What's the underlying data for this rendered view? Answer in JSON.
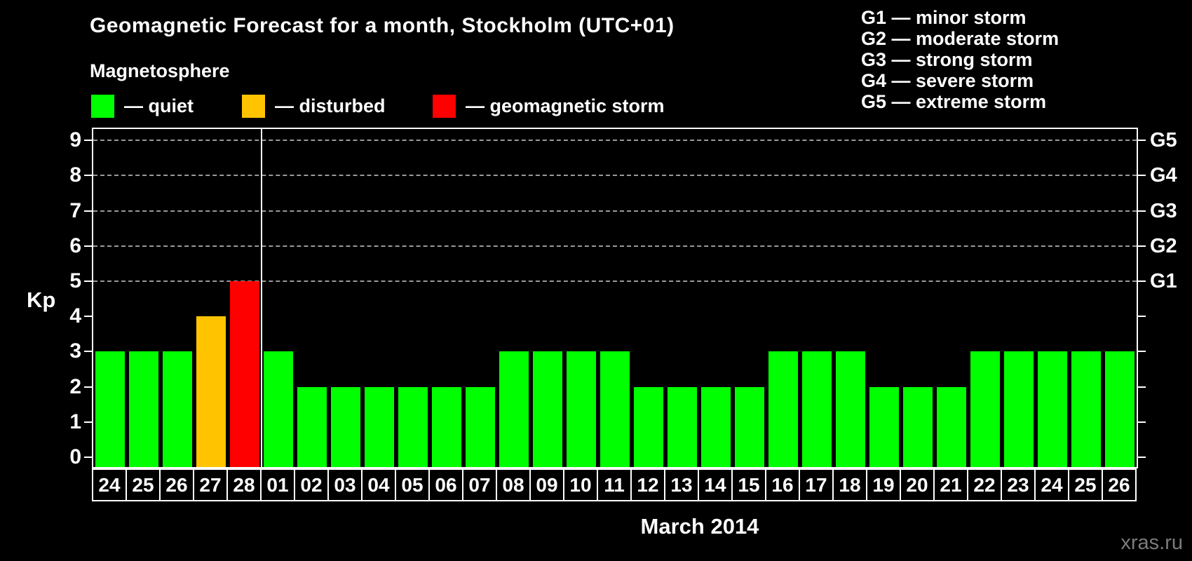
{
  "header": {
    "title": "Geomagnetic Forecast for a month, Stockholm (UTC+01)",
    "subtitle": "Magnetosphere"
  },
  "magnetosphere_legend": [
    {
      "status": "quiet",
      "label": "— quiet",
      "color": "#00FF00"
    },
    {
      "status": "disturbed",
      "label": "— disturbed",
      "color": "#FFC300"
    },
    {
      "status": "storm",
      "label": "— geomagnetic storm",
      "color": "#FF0000"
    }
  ],
  "g_scale_legend": [
    "G1 — minor storm",
    "G2 — moderate storm",
    "G3 — strong storm",
    "G4 — severe storm",
    "G5 — extreme storm"
  ],
  "watermark": "xras.ru",
  "chart_data": {
    "type": "bar",
    "title": "Geomagnetic Forecast for a month, Stockholm (UTC+01)",
    "xlabel": "March 2014",
    "ylabel": "Kp",
    "ylim": [
      0,
      9
    ],
    "y_ticks": [
      0,
      1,
      2,
      3,
      4,
      5,
      6,
      7,
      8,
      9
    ],
    "gridlines_at": [
      5,
      6,
      7,
      8,
      9
    ],
    "grid_style": "dashed horizontal, storm levels only",
    "right_axis_labels": {
      "5": "G1",
      "6": "G2",
      "7": "G3",
      "8": "G4",
      "9": "G5"
    },
    "legend_position": "top",
    "month_separator_after_index": 4,
    "status_colors": {
      "quiet": "#00FF00",
      "disturbed": "#FFC300",
      "storm": "#FF0000"
    },
    "bars": [
      {
        "day": "24",
        "kp": 3,
        "status": "quiet"
      },
      {
        "day": "25",
        "kp": 3,
        "status": "quiet"
      },
      {
        "day": "26",
        "kp": 3,
        "status": "quiet"
      },
      {
        "day": "27",
        "kp": 4,
        "status": "disturbed"
      },
      {
        "day": "28",
        "kp": 5,
        "status": "storm"
      },
      {
        "day": "01",
        "kp": 3,
        "status": "quiet"
      },
      {
        "day": "02",
        "kp": 2,
        "status": "quiet"
      },
      {
        "day": "03",
        "kp": 2,
        "status": "quiet"
      },
      {
        "day": "04",
        "kp": 2,
        "status": "quiet"
      },
      {
        "day": "05",
        "kp": 2,
        "status": "quiet"
      },
      {
        "day": "06",
        "kp": 2,
        "status": "quiet"
      },
      {
        "day": "07",
        "kp": 2,
        "status": "quiet"
      },
      {
        "day": "08",
        "kp": 3,
        "status": "quiet"
      },
      {
        "day": "09",
        "kp": 3,
        "status": "quiet"
      },
      {
        "day": "10",
        "kp": 3,
        "status": "quiet"
      },
      {
        "day": "11",
        "kp": 3,
        "status": "quiet"
      },
      {
        "day": "12",
        "kp": 2,
        "status": "quiet"
      },
      {
        "day": "13",
        "kp": 2,
        "status": "quiet"
      },
      {
        "day": "14",
        "kp": 2,
        "status": "quiet"
      },
      {
        "day": "15",
        "kp": 2,
        "status": "quiet"
      },
      {
        "day": "16",
        "kp": 3,
        "status": "quiet"
      },
      {
        "day": "17",
        "kp": 3,
        "status": "quiet"
      },
      {
        "day": "18",
        "kp": 3,
        "status": "quiet"
      },
      {
        "day": "19",
        "kp": 2,
        "status": "quiet"
      },
      {
        "day": "20",
        "kp": 2,
        "status": "quiet"
      },
      {
        "day": "21",
        "kp": 2,
        "status": "quiet"
      },
      {
        "day": "22",
        "kp": 3,
        "status": "quiet"
      },
      {
        "day": "23",
        "kp": 3,
        "status": "quiet"
      },
      {
        "day": "24",
        "kp": 3,
        "status": "quiet"
      },
      {
        "day": "25",
        "kp": 3,
        "status": "quiet"
      },
      {
        "day": "26",
        "kp": 3,
        "status": "quiet"
      }
    ]
  }
}
